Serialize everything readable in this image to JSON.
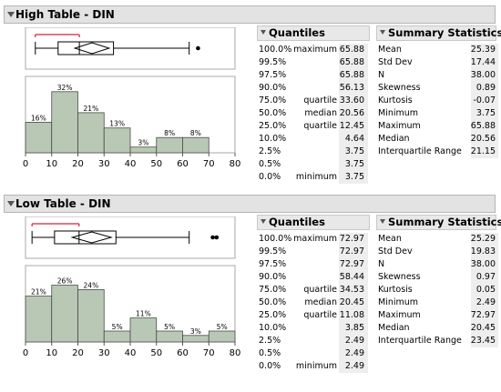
{
  "sections": [
    {
      "title": "High Table - DIN",
      "quantiles": {
        "header": "Quantiles",
        "rows": [
          {
            "pct": "100.0%",
            "label": "maximum",
            "value": "65.88"
          },
          {
            "pct": "99.5%",
            "label": "",
            "value": "65.88"
          },
          {
            "pct": "97.5%",
            "label": "",
            "value": "65.88"
          },
          {
            "pct": "90.0%",
            "label": "",
            "value": "56.13"
          },
          {
            "pct": "75.0%",
            "label": "quartile",
            "value": "33.60"
          },
          {
            "pct": "50.0%",
            "label": "median",
            "value": "20.56"
          },
          {
            "pct": "25.0%",
            "label": "quartile",
            "value": "12.45"
          },
          {
            "pct": "10.0%",
            "label": "",
            "value": "4.64"
          },
          {
            "pct": "2.5%",
            "label": "",
            "value": "3.75"
          },
          {
            "pct": "0.5%",
            "label": "",
            "value": "3.75"
          },
          {
            "pct": "0.0%",
            "label": "minimum",
            "value": "3.75"
          }
        ]
      },
      "summary": {
        "header": "Summary Statistics",
        "rows": [
          {
            "label": "Mean",
            "value": "25.39"
          },
          {
            "label": "Std Dev",
            "value": "17.44"
          },
          {
            "label": "N",
            "value": "38.00"
          },
          {
            "label": "Skewness",
            "value": "0.89"
          },
          {
            "label": "Kurtosis",
            "value": "-0.07"
          },
          {
            "label": "Minimum",
            "value": "3.75"
          },
          {
            "label": "Maximum",
            "value": "65.88"
          },
          {
            "label": "Median",
            "value": "20.56"
          },
          {
            "label": "Interquartile Range",
            "value": "21.15"
          }
        ]
      }
    },
    {
      "title": "Low Table - DIN",
      "quantiles": {
        "header": "Quantiles",
        "rows": [
          {
            "pct": "100.0%",
            "label": "maximum",
            "value": "72.97"
          },
          {
            "pct": "99.5%",
            "label": "",
            "value": "72.97"
          },
          {
            "pct": "97.5%",
            "label": "",
            "value": "72.97"
          },
          {
            "pct": "90.0%",
            "label": "",
            "value": "58.44"
          },
          {
            "pct": "75.0%",
            "label": "quartile",
            "value": "34.53"
          },
          {
            "pct": "50.0%",
            "label": "median",
            "value": "20.45"
          },
          {
            "pct": "25.0%",
            "label": "quartile",
            "value": "11.08"
          },
          {
            "pct": "10.0%",
            "label": "",
            "value": "3.85"
          },
          {
            "pct": "2.5%",
            "label": "",
            "value": "2.49"
          },
          {
            "pct": "0.5%",
            "label": "",
            "value": "2.49"
          },
          {
            "pct": "0.0%",
            "label": "minimum",
            "value": "2.49"
          }
        ]
      },
      "summary": {
        "header": "Summary Statistics",
        "rows": [
          {
            "label": "Mean",
            "value": "25.29"
          },
          {
            "label": "Std Dev",
            "value": "19.83"
          },
          {
            "label": "N",
            "value": "38.00"
          },
          {
            "label": "Skewness",
            "value": "0.97"
          },
          {
            "label": "Kurtosis",
            "value": "0.05"
          },
          {
            "label": "Minimum",
            "value": "2.49"
          },
          {
            "label": "Maximum",
            "value": "72.97"
          },
          {
            "label": "Median",
            "value": "20.45"
          },
          {
            "label": "Interquartile Range",
            "value": "23.45"
          }
        ]
      }
    }
  ],
  "chart_data": [
    {
      "type": "bar",
      "bin_edges": [
        0,
        10,
        20,
        30,
        40,
        50,
        60,
        70
      ],
      "values": [
        16,
        32,
        21,
        13,
        3,
        8,
        8
      ],
      "value_labels": [
        "16%",
        "32%",
        "21%",
        "13%",
        "3%",
        "8%",
        "8%"
      ],
      "x_ticks": [
        "0",
        "10",
        "20",
        "30",
        "40",
        "50",
        "60",
        "70",
        "80"
      ],
      "xlim": [
        0,
        80
      ],
      "ylim": [
        0,
        40
      ],
      "boxplot": {
        "whisker_low": 3.75,
        "q1": 12.45,
        "median": 20.56,
        "q3": 33.6,
        "whisker_high": 62.5,
        "mean": 25.39,
        "std_dev": 17.44,
        "outliers": [
          65.88
        ],
        "shortest_half": [
          3.75,
          20.56
        ]
      },
      "bar_color": "#b9c8b5",
      "shortest_half_color": "#d0243a"
    },
    {
      "type": "bar",
      "bin_edges": [
        0,
        10,
        20,
        30,
        40,
        50,
        60,
        70,
        80
      ],
      "values": [
        21,
        26,
        24,
        5,
        11,
        5,
        3,
        5
      ],
      "value_labels": [
        "21%",
        "26%",
        "24%",
        "5%",
        "11%",
        "5%",
        "3%",
        "5%"
      ],
      "x_ticks": [
        "0",
        "10",
        "20",
        "30",
        "40",
        "50",
        "60",
        "70",
        "80"
      ],
      "xlim": [
        0,
        80
      ],
      "ylim": [
        0,
        35
      ],
      "boxplot": {
        "whisker_low": 2.49,
        "q1": 11.08,
        "median": 20.45,
        "q3": 34.53,
        "whisker_high": 62.5,
        "mean": 25.29,
        "std_dev": 19.83,
        "outliers": [
          71.5,
          72.97
        ],
        "shortest_half": [
          2.49,
          20.45
        ]
      },
      "bar_color": "#b9c8b5",
      "shortest_half_color": "#d0243a"
    }
  ]
}
